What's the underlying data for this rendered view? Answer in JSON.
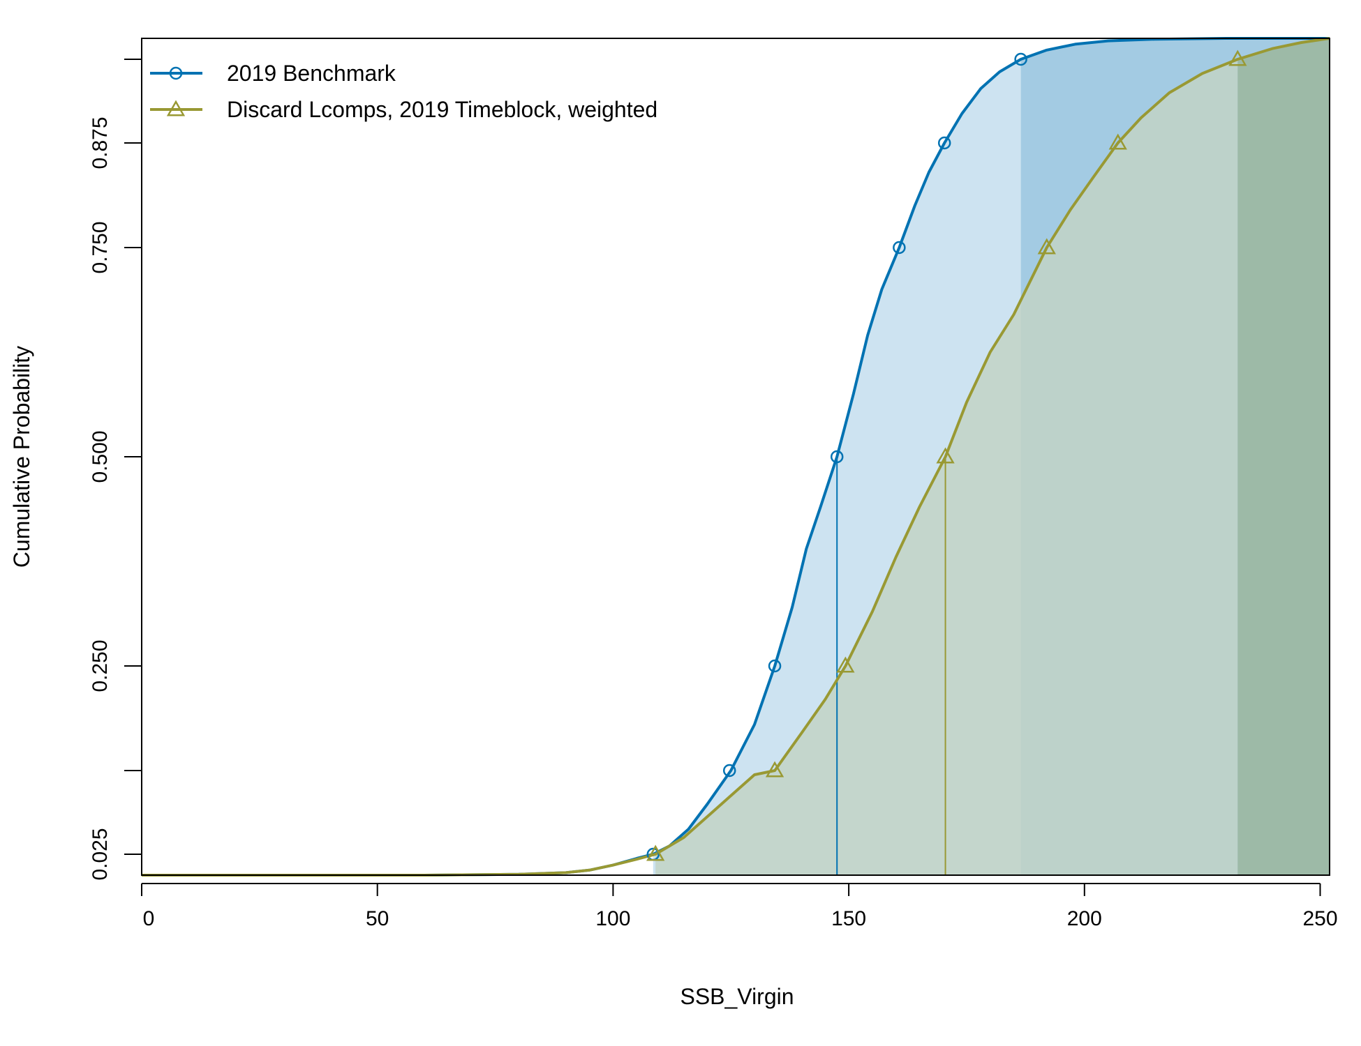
{
  "chart_data": {
    "type": "line",
    "title": "",
    "xlabel": "SSB_Virgin",
    "ylabel": "Cumulative Probability",
    "xlim": [
      0,
      252
    ],
    "ylim": [
      0.0,
      1.0
    ],
    "x_ticks": [
      0,
      50,
      100,
      150,
      200,
      250
    ],
    "x_tick_labels": [
      "0",
      "50",
      "100",
      "150",
      "200",
      "250"
    ],
    "y_ticks": [
      0.025,
      0.125,
      0.25,
      0.5,
      0.75,
      0.875,
      0.975
    ],
    "y_tick_labels": [
      "0.025",
      "",
      "0.250",
      "0.500",
      "0.750",
      "0.875",
      ""
    ],
    "grid": false,
    "legend_position": "top-left",
    "series": [
      {
        "name": "2019 Benchmark",
        "color": "#0072B2",
        "shade_color": "#cde3f1",
        "tail_color": "#a3cbe3",
        "marker": "circle",
        "median": 147.5,
        "upper_975": 186.5,
        "lower_025": 108.5,
        "x": [
          0,
          60,
          80,
          90,
          95,
          100,
          105,
          108.5,
          112,
          116,
          120,
          125,
          130,
          134.3,
          138,
          141,
          144,
          147.5,
          151,
          154,
          157,
          160.7,
          164,
          167,
          170.3,
          174,
          178,
          182,
          186.5,
          192,
          198,
          205,
          215,
          230,
          252
        ],
        "y": [
          0.0,
          0.0,
          0.001,
          0.003,
          0.006,
          0.012,
          0.02,
          0.025,
          0.035,
          0.055,
          0.085,
          0.125,
          0.18,
          0.25,
          0.32,
          0.39,
          0.44,
          0.5,
          0.575,
          0.645,
          0.7,
          0.75,
          0.8,
          0.84,
          0.875,
          0.91,
          0.94,
          0.96,
          0.975,
          0.986,
          0.993,
          0.997,
          0.999,
          1.0,
          1.0
        ],
        "marker_x": [
          108.5,
          124.7,
          134.3,
          147.5,
          160.7,
          170.3,
          186.5
        ],
        "marker_y": [
          0.025,
          0.125,
          0.25,
          0.5,
          0.75,
          0.875,
          0.975
        ]
      },
      {
        "name": "Discard Lcomps, 2019 Timeblock, weighted",
        "color": "#999933",
        "shade_color": "#c2d4c6",
        "tail_color": "#9cb79c",
        "marker": "triangle",
        "median": 170.5,
        "upper_975": 232.5,
        "lower_025": 109,
        "x": [
          0,
          60,
          80,
          90,
          95,
          100,
          105,
          109,
          115,
          120,
          125,
          130,
          134.3,
          140,
          145,
          149.3,
          155,
          160,
          165,
          170.5,
          175,
          180,
          185,
          192,
          197,
          202,
          207.1,
          212,
          218,
          225,
          232.5,
          240,
          246,
          252
        ],
        "y": [
          0.0,
          0.0,
          0.001,
          0.003,
          0.006,
          0.012,
          0.019,
          0.025,
          0.045,
          0.07,
          0.095,
          0.12,
          0.125,
          0.17,
          0.21,
          0.25,
          0.315,
          0.38,
          0.44,
          0.5,
          0.565,
          0.625,
          0.67,
          0.75,
          0.795,
          0.835,
          0.875,
          0.905,
          0.935,
          0.958,
          0.975,
          0.988,
          0.995,
          1.0
        ],
        "marker_x": [
          109,
          134.3,
          149.3,
          170.5,
          192,
          207.1,
          232.5
        ],
        "marker_y": [
          0.025,
          0.125,
          0.25,
          0.5,
          0.75,
          0.875,
          0.975
        ]
      }
    ]
  }
}
